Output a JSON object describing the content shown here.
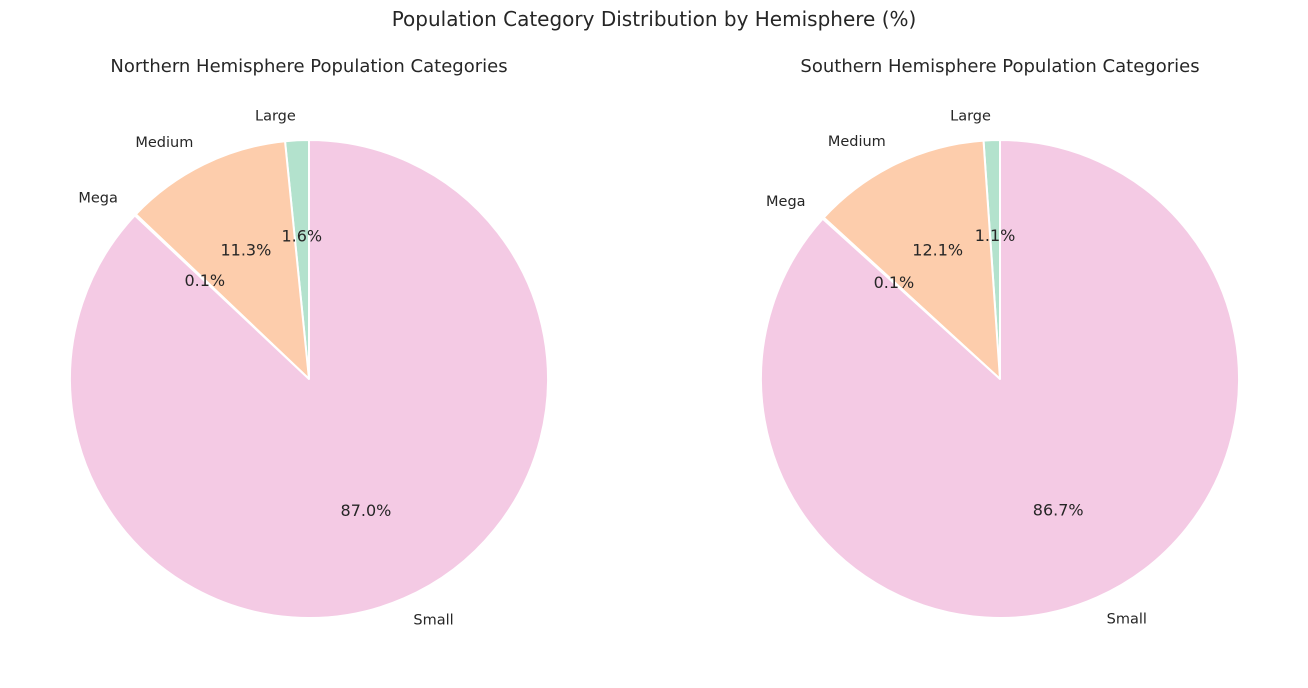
{
  "figure": {
    "title": "Population Category Distribution by Hemisphere (%)"
  },
  "chart_data": [
    {
      "type": "pie",
      "title": "Northern Hemisphere Population Categories",
      "start_angle_deg": 90,
      "direction": "counterclockwise",
      "slices": [
        {
          "label": "Large",
          "value": 1.6,
          "pct_label": "1.6%",
          "color": "#b3e2cd"
        },
        {
          "label": "Medium",
          "value": 11.3,
          "pct_label": "11.3%",
          "color": "#fdcdac"
        },
        {
          "label": "Mega",
          "value": 0.1,
          "pct_label": "0.1%",
          "color": "#cbd5e8"
        },
        {
          "label": "Small",
          "value": 87.0,
          "pct_label": "87.0%",
          "color": "#f4cae4"
        }
      ]
    },
    {
      "type": "pie",
      "title": "Southern Hemisphere Population Categories",
      "start_angle_deg": 90,
      "direction": "counterclockwise",
      "slices": [
        {
          "label": "Large",
          "value": 1.1,
          "pct_label": "1.1%",
          "color": "#b3e2cd"
        },
        {
          "label": "Medium",
          "value": 12.1,
          "pct_label": "12.1%",
          "color": "#fdcdac"
        },
        {
          "label": "Mega",
          "value": 0.1,
          "pct_label": "0.1%",
          "color": "#cbd5e8"
        },
        {
          "label": "Small",
          "value": 86.7,
          "pct_label": "86.7%",
          "color": "#f4cae4"
        }
      ]
    }
  ]
}
